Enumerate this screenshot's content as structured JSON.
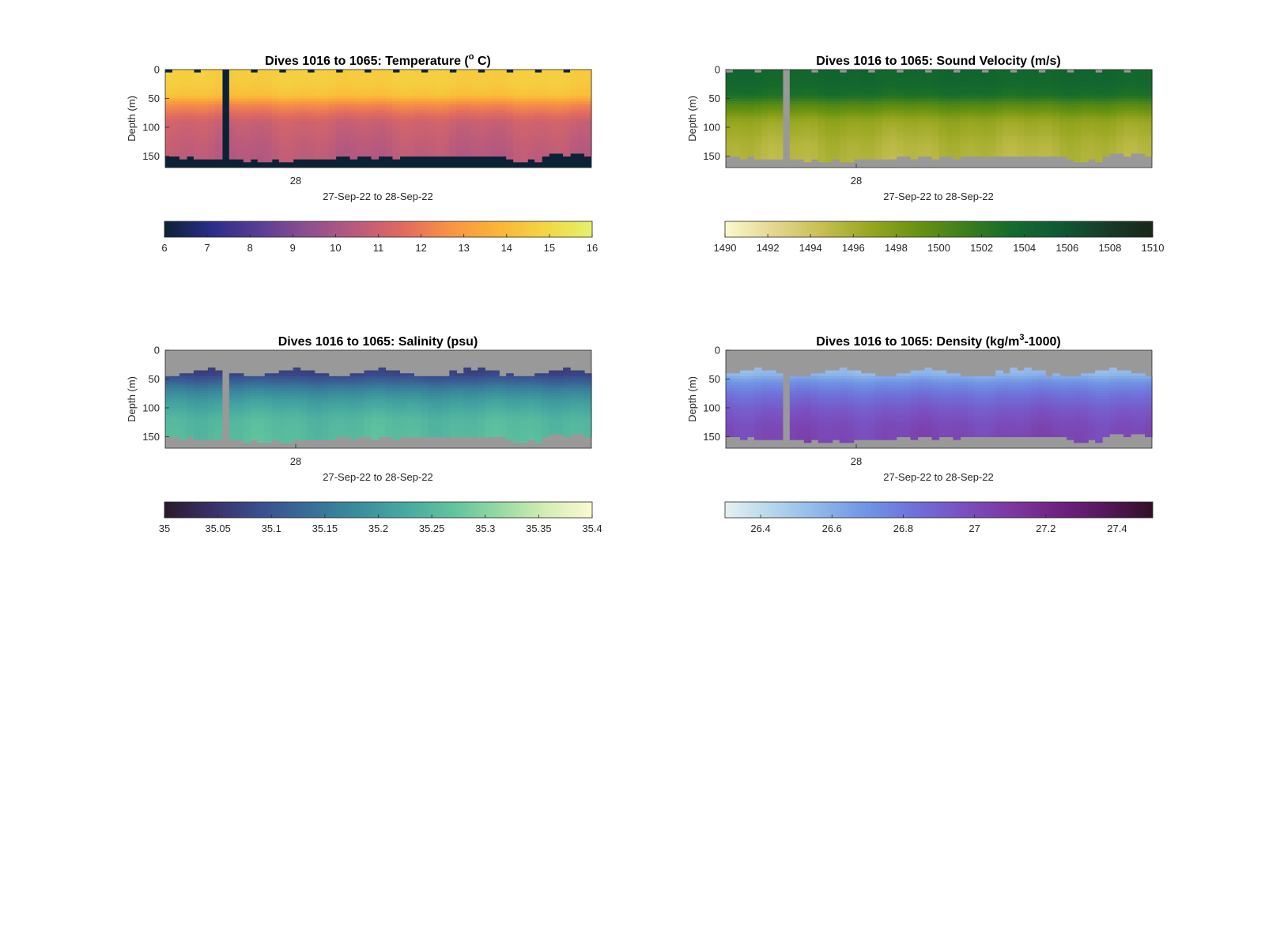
{
  "chart_data": [
    {
      "type": "heatmap",
      "title_prefix": "Dives 1016 to 1065: Temperature (",
      "title_sup": "o",
      "title_suffix": " C)",
      "xlabel": "27-Sep-22 to 28-Sep-22",
      "ylabel": "Depth (m)",
      "x_tick_labels": [
        "28"
      ],
      "y_tick_labels": [
        "0",
        "50",
        "100",
        "150"
      ],
      "ylim": [
        0,
        170
      ],
      "colorbar_ticks": [
        "6",
        "7",
        "8",
        "9",
        "10",
        "11",
        "12",
        "13",
        "14",
        "15",
        "16"
      ],
      "colorbar_range": [
        6,
        16
      ],
      "colormap": [
        "#0b2236",
        "#2b2d8a",
        "#5a3d94",
        "#8d4f8f",
        "#b85a7e",
        "#e06a60",
        "#f89344",
        "#fbb437",
        "#f3d642",
        "#e5f16b"
      ],
      "nodata_color": "#0b2236",
      "profile": [
        [
          0,
          14.6
        ],
        [
          20,
          14.6
        ],
        [
          45,
          14.2
        ],
        [
          60,
          12.5
        ],
        [
          90,
          11.0
        ],
        [
          130,
          10.6
        ],
        [
          170,
          10.4
        ]
      ]
    },
    {
      "type": "heatmap",
      "title": "Dives 1016 to 1065: Sound Velocity (m/s)",
      "xlabel": "27-Sep-22 to 28-Sep-22",
      "ylabel": "Depth (m)",
      "x_tick_labels": [
        "28"
      ],
      "y_tick_labels": [
        "0",
        "50",
        "100",
        "150"
      ],
      "ylim": [
        0,
        170
      ],
      "colorbar_ticks": [
        "1490",
        "1492",
        "1494",
        "1496",
        "1498",
        "1500",
        "1502",
        "1504",
        "1506",
        "1508",
        "1510"
      ],
      "colorbar_range": [
        1490,
        1510
      ],
      "colormap": [
        "#fbf8cc",
        "#e5d792",
        "#c8c054",
        "#9aa822",
        "#6b9312",
        "#3f7f1d",
        "#166c2c",
        "#0f5a33",
        "#173d2a",
        "#1a2617"
      ],
      "nodata_color": "#999999",
      "profile": [
        [
          0,
          1504.2
        ],
        [
          20,
          1504.0
        ],
        [
          45,
          1503.0
        ],
        [
          60,
          1500.2
        ],
        [
          90,
          1496.8
        ],
        [
          130,
          1495.6
        ],
        [
          170,
          1495.2
        ]
      ]
    },
    {
      "type": "heatmap",
      "title": "Dives 1016 to 1065: Salinity (psu)",
      "xlabel": "27-Sep-22 to 28-Sep-22",
      "ylabel": "Depth (m)",
      "x_tick_labels": [
        "28"
      ],
      "y_tick_labels": [
        "0",
        "50",
        "100",
        "150"
      ],
      "ylim": [
        0,
        170
      ],
      "colorbar_ticks": [
        "35",
        "35.05",
        "35.1",
        "35.15",
        "35.2",
        "35.25",
        "35.3",
        "35.35",
        "35.4"
      ],
      "colorbar_range": [
        35,
        35.4
      ],
      "colormap": [
        "#2a1a2c",
        "#3a3068",
        "#3a4e8e",
        "#386d97",
        "#3b8b9c",
        "#46a8a0",
        "#5ec19e",
        "#94d8a3",
        "#d3edb3",
        "#fbf9d3"
      ],
      "nodata_color": "#999999",
      "profile": [
        [
          40,
          35.07
        ],
        [
          55,
          35.12
        ],
        [
          70,
          35.17
        ],
        [
          90,
          35.21
        ],
        [
          120,
          35.25
        ],
        [
          170,
          35.26
        ]
      ]
    },
    {
      "type": "heatmap",
      "title_prefix": "Dives 1016 to 1065: Density (kg/m",
      "title_sup": "3",
      "title_suffix": "-1000)",
      "xlabel": "27-Sep-22 to 28-Sep-22",
      "ylabel": "Depth (m)",
      "x_tick_labels": [
        "28"
      ],
      "y_tick_labels": [
        "0",
        "50",
        "100",
        "150"
      ],
      "ylim": [
        0,
        170
      ],
      "colorbar_ticks": [
        "26.4",
        "26.6",
        "26.8",
        "27",
        "27.2",
        "27.4"
      ],
      "colorbar_range": [
        26.3,
        27.5
      ],
      "colormap": [
        "#e6f1f1",
        "#b4d6ec",
        "#8fb6ea",
        "#7094e3",
        "#6f70d9",
        "#7a50c0",
        "#7c38a0",
        "#6f2380",
        "#55175d",
        "#331025"
      ],
      "nodata_color": "#999999",
      "profile": [
        [
          40,
          26.55
        ],
        [
          55,
          26.7
        ],
        [
          75,
          26.82
        ],
        [
          100,
          26.92
        ],
        [
          130,
          27.0
        ],
        [
          170,
          27.03
        ]
      ]
    }
  ]
}
